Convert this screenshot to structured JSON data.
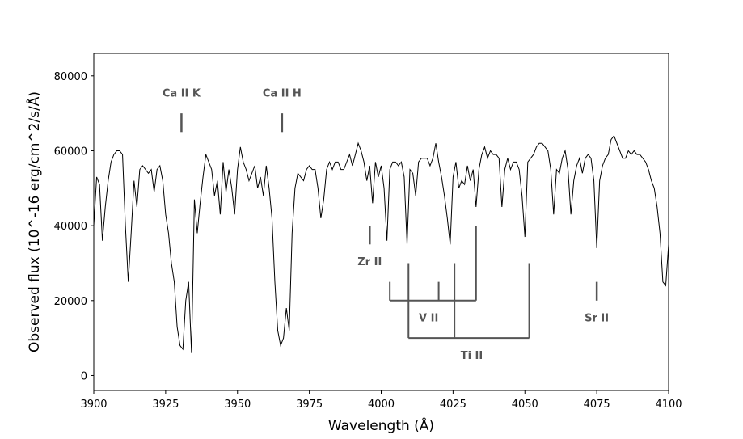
{
  "chart_data": {
    "type": "line",
    "title": "",
    "xlabel": "Wavelength (Å)",
    "ylabel": "Observed flux (10^-16 erg/cm^2/s/Å)",
    "xlim": [
      3900,
      4100
    ],
    "ylim": [
      -4000,
      86000
    ],
    "xticks": [
      3900,
      3925,
      3950,
      3975,
      4000,
      4025,
      4050,
      4075,
      4100
    ],
    "yticks": [
      0,
      20000,
      40000,
      60000,
      80000
    ],
    "grid": false,
    "line_color": "#000000",
    "annotation_color": "#555555",
    "series": [
      {
        "name": "",
        "x": [
          3900,
          3901,
          3902,
          3903,
          3904,
          3905,
          3906,
          3907,
          3908,
          3909,
          3910,
          3911,
          3912,
          3913,
          3914,
          3915,
          3916,
          3917,
          3918,
          3919,
          3920,
          3921,
          3922,
          3923,
          3924,
          3925,
          3926,
          3927,
          3928,
          3929,
          3930,
          3931,
          3932,
          3933,
          3934,
          3935,
          3936,
          3937,
          3938,
          3939,
          3940,
          3941,
          3942,
          3943,
          3944,
          3945,
          3946,
          3947,
          3948,
          3949,
          3950,
          3951,
          3952,
          3953,
          3954,
          3955,
          3956,
          3957,
          3958,
          3959,
          3960,
          3961,
          3962,
          3963,
          3964,
          3965,
          3966,
          3967,
          3968,
          3969,
          3970,
          3971,
          3972,
          3973,
          3974,
          3975,
          3976,
          3977,
          3978,
          3979,
          3980,
          3981,
          3982,
          3983,
          3984,
          3985,
          3986,
          3987,
          3988,
          3989,
          3990,
          3991,
          3992,
          3993,
          3994,
          3995,
          3996,
          3997,
          3998,
          3999,
          4000,
          4001,
          4002,
          4003,
          4004,
          4005,
          4006,
          4007,
          4008,
          4009,
          4010,
          4011,
          4012,
          4013,
          4014,
          4015,
          4016,
          4017,
          4018,
          4019,
          4020,
          4021,
          4022,
          4023,
          4024,
          4025,
          4026,
          4027,
          4028,
          4029,
          4030,
          4031,
          4032,
          4033,
          4034,
          4035,
          4036,
          4037,
          4038,
          4039,
          4040,
          4041,
          4042,
          4043,
          4044,
          4045,
          4046,
          4047,
          4048,
          4049,
          4050,
          4051,
          4052,
          4053,
          4054,
          4055,
          4056,
          4057,
          4058,
          4059,
          4060,
          4061,
          4062,
          4063,
          4064,
          4065,
          4066,
          4067,
          4068,
          4069,
          4070,
          4071,
          4072,
          4073,
          4074,
          4075,
          4076,
          4077,
          4078,
          4079,
          4080,
          4081,
          4082,
          4083,
          4084,
          4085,
          4086,
          4087,
          4088,
          4089,
          4090,
          4091,
          4092,
          4093,
          4094,
          4095,
          4096,
          4097,
          4098,
          4099,
          4100
        ],
        "y": [
          40000,
          53000,
          51000,
          36000,
          45000,
          52000,
          57000,
          59000,
          60000,
          60000,
          59000,
          40000,
          25000,
          38000,
          52000,
          45000,
          55000,
          56000,
          55000,
          54000,
          55000,
          49000,
          55000,
          56000,
          52000,
          43000,
          38000,
          30000,
          25000,
          13000,
          8000,
          7000,
          20000,
          25000,
          6000,
          47000,
          38000,
          46000,
          53000,
          59000,
          57000,
          55000,
          48000,
          52000,
          43000,
          57000,
          49000,
          55000,
          50000,
          43000,
          55000,
          61000,
          57000,
          55000,
          52000,
          54000,
          56000,
          50000,
          53000,
          48000,
          56000,
          50000,
          42000,
          25000,
          12000,
          8000,
          10000,
          18000,
          12000,
          38000,
          50000,
          54000,
          53000,
          52000,
          55000,
          56000,
          55000,
          55000,
          50000,
          42000,
          47000,
          55000,
          57000,
          55000,
          57000,
          57000,
          55000,
          55000,
          57000,
          59000,
          56000,
          59000,
          62000,
          60000,
          57000,
          52000,
          56000,
          46000,
          57000,
          53000,
          56000,
          50000,
          36000,
          55000,
          57000,
          57000,
          56000,
          57000,
          53000,
          35000,
          55000,
          54000,
          48000,
          57000,
          58000,
          58000,
          58000,
          56000,
          58000,
          62000,
          57000,
          53000,
          48000,
          42000,
          35000,
          53000,
          57000,
          50000,
          52000,
          51000,
          56000,
          52000,
          55000,
          45000,
          55000,
          59000,
          61000,
          58000,
          60000,
          59000,
          59000,
          58000,
          45000,
          55000,
          58000,
          55000,
          57000,
          57000,
          55000,
          48000,
          37000,
          57000,
          58000,
          59000,
          61000,
          62000,
          62000,
          61000,
          60000,
          55000,
          43000,
          55000,
          54000,
          58000,
          60000,
          55000,
          43000,
          52000,
          56000,
          58000,
          54000,
          58000,
          59000,
          58000,
          52000,
          34000,
          52000,
          56000,
          58000,
          59000,
          63000,
          64000,
          62000,
          60000,
          58000,
          58000,
          60000,
          59000,
          60000,
          59000,
          59000,
          58000,
          57000,
          55000,
          52000,
          50000,
          45000,
          38000,
          25000,
          24000,
          35000
        ]
      }
    ],
    "annotations": [
      {
        "label": "Ca II K",
        "x": 3930.5,
        "tick_y": [
          65000,
          70000
        ],
        "label_y": 75500
      },
      {
        "label": "Ca II H",
        "x": 3965.5,
        "tick_y": [
          65000,
          70000
        ],
        "label_y": 75500
      },
      {
        "label": "Zr II",
        "x": 3996,
        "tick_y": [
          35000,
          40000
        ],
        "label_y": 30500
      },
      {
        "label": "Sr II",
        "x": 4075,
        "tick_y": [
          20000,
          25000
        ],
        "label_y": 15500
      }
    ],
    "groups": [
      {
        "label": "V II",
        "base_y": 20000,
        "lines": [
          {
            "x": 4003,
            "top": 25000
          },
          {
            "x": 4020,
            "top": 25000
          },
          {
            "x": 4033,
            "top": 40000
          }
        ],
        "label_x": 4016.5,
        "label_y": 15500
      },
      {
        "label": "Ti II",
        "base_y": 10000,
        "lines": [
          {
            "x": 4009.5,
            "top": 30000
          },
          {
            "x": 4025.5,
            "top": 30000
          },
          {
            "x": 4051.5,
            "top": 30000
          }
        ],
        "label_x": 4031.5,
        "label_y": 5500
      }
    ]
  }
}
